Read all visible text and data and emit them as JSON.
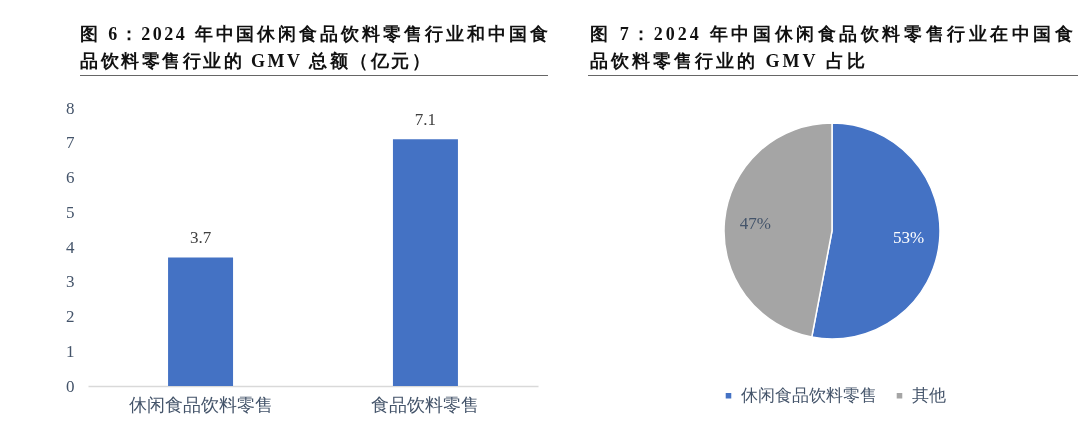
{
  "chart_data": [
    {
      "type": "bar",
      "title": "图 6：2024 年中国休闲食品饮料零售行业和中国食品饮料零售行业的 GMV 总额（亿元）",
      "categories": [
        "休闲食品饮料零售",
        "食品饮料零售"
      ],
      "values": [
        3.7,
        7.1
      ],
      "color": "#4472c4",
      "ylim": [
        0,
        8
      ],
      "yticks": [
        0,
        1,
        2,
        3,
        4,
        5,
        6,
        7,
        8
      ],
      "data_labels": true
    },
    {
      "type": "pie",
      "title": "图 7：2024 年中国休闲食品饮料零售行业在中国食品饮料零售行业的 GMV 占比",
      "categories": [
        "休闲食品饮料零售",
        "其他"
      ],
      "values": [
        53,
        47
      ],
      "colors": [
        "#4472c4",
        "#a5a5a5"
      ],
      "value_labels": [
        "53%",
        "47%"
      ],
      "legend": "bottom"
    }
  ]
}
